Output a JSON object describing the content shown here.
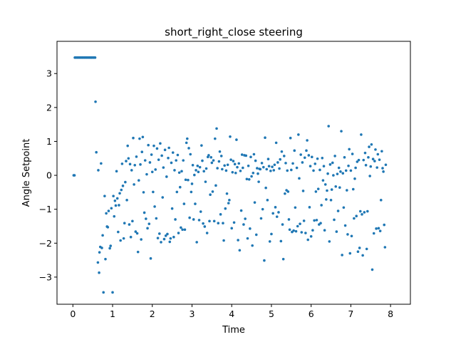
{
  "chart_data": {
    "type": "scatter",
    "title": "short_right_close steering",
    "xlabel": "Time",
    "ylabel": "Angle Setpoint",
    "xlim": [
      -0.4,
      8.5
    ],
    "ylim": [
      -3.8,
      3.95
    ],
    "xticks": [
      0,
      1,
      2,
      3,
      4,
      5,
      6,
      7,
      8
    ],
    "yticks": [
      -3,
      -2,
      -1,
      0,
      1,
      2,
      3
    ],
    "grid": false,
    "legend": "none",
    "color": "#1f77b4",
    "points": [
      [
        0.02,
        0.0
      ],
      [
        0.04,
        0.0
      ],
      [
        0.05,
        3.47
      ],
      [
        0.08,
        3.47
      ],
      [
        0.11,
        3.47
      ],
      [
        0.14,
        3.47
      ],
      [
        0.17,
        3.47
      ],
      [
        0.2,
        3.47
      ],
      [
        0.23,
        3.47
      ],
      [
        0.26,
        3.47
      ],
      [
        0.29,
        3.47
      ],
      [
        0.32,
        3.47
      ],
      [
        0.35,
        3.47
      ],
      [
        0.38,
        3.47
      ],
      [
        0.41,
        3.47
      ],
      [
        0.44,
        3.47
      ],
      [
        0.47,
        3.47
      ],
      [
        0.5,
        3.47
      ],
      [
        0.53,
        3.47
      ],
      [
        0.56,
        3.47
      ],
      [
        0.57,
        2.17
      ],
      [
        0.59,
        0.68
      ],
      [
        0.63,
        -2.57
      ],
      [
        0.64,
        0.15
      ],
      [
        0.66,
        -2.87
      ],
      [
        0.67,
        -2.27
      ],
      [
        0.69,
        -2.11
      ],
      [
        0.71,
        0.35
      ],
      [
        0.73,
        -2.14
      ],
      [
        0.75,
        -1.77
      ],
      [
        0.77,
        -3.45
      ],
      [
        0.8,
        -0.61
      ],
      [
        0.82,
        -2.47
      ],
      [
        0.84,
        -1.12
      ],
      [
        0.86,
        -1.51
      ],
      [
        0.88,
        -1.53
      ],
      [
        0.9,
        -1.05
      ],
      [
        0.93,
        -2.15
      ],
      [
        0.95,
        -2.08
      ],
      [
        0.97,
        -0.97
      ],
      [
        1.0,
        -3.45
      ],
      [
        1.02,
        -0.61
      ],
      [
        1.04,
        -1.21
      ],
      [
        1.06,
        -0.75
      ],
      [
        1.08,
        -0.89
      ],
      [
        1.1,
        0.12
      ],
      [
        1.12,
        -0.68
      ],
      [
        1.14,
        -1.67
      ],
      [
        1.16,
        -0.88
      ],
      [
        1.18,
        -0.53
      ],
      [
        1.2,
        -1.92
      ],
      [
        1.22,
        -0.43
      ],
      [
        1.24,
        0.34
      ],
      [
        1.26,
        -0.31
      ],
      [
        1.28,
        -1.86
      ],
      [
        1.3,
        -1.41
      ],
      [
        1.32,
        -0.2
      ],
      [
        1.34,
        0.42
      ],
      [
        1.36,
        -0.73
      ],
      [
        1.38,
        0.87
      ],
      [
        1.4,
        0.5
      ],
      [
        1.42,
        -1.45
      ],
      [
        1.44,
        0.33
      ],
      [
        1.46,
        -1.82
      ],
      [
        1.48,
        0.15
      ],
      [
        1.5,
        -1.35
      ],
      [
        1.52,
        1.1
      ],
      [
        1.54,
        -0.27
      ],
      [
        1.56,
        0.3
      ],
      [
        1.58,
        -1.66
      ],
      [
        1.6,
        0.55
      ],
      [
        1.62,
        -1.71
      ],
      [
        1.64,
        -2.26
      ],
      [
        1.66,
        -0.15
      ],
      [
        1.68,
        1.08
      ],
      [
        1.7,
        0.32
      ],
      [
        1.72,
        -1.89
      ],
      [
        1.74,
        0.69
      ],
      [
        1.76,
        1.13
      ],
      [
        1.78,
        -0.5
      ],
      [
        1.8,
        -1.1
      ],
      [
        1.82,
        0.44
      ],
      [
        1.84,
        -1.28
      ],
      [
        1.86,
        0.03
      ],
      [
        1.88,
        -1.56
      ],
      [
        1.9,
        0.89
      ],
      [
        1.92,
        -1.43
      ],
      [
        1.94,
        0.38
      ],
      [
        1.96,
        -2.45
      ],
      [
        1.98,
        0.61
      ],
      [
        2.0,
        0.1
      ],
      [
        2.02,
        -0.49
      ],
      [
        2.04,
        0.87
      ],
      [
        2.06,
        -0.92
      ],
      [
        2.08,
        0.17
      ],
      [
        2.1,
        -1.27
      ],
      [
        2.12,
        0.79
      ],
      [
        2.14,
        -1.85
      ],
      [
        2.16,
        0.46
      ],
      [
        2.18,
        -1.72
      ],
      [
        2.2,
        0.94
      ],
      [
        2.22,
        -1.97
      ],
      [
        2.24,
        0.58
      ],
      [
        2.26,
        -0.65
      ],
      [
        2.28,
        0.23
      ],
      [
        2.3,
        -1.88
      ],
      [
        2.32,
        0.75
      ],
      [
        2.34,
        -1.78
      ],
      [
        2.36,
        -0.04
      ],
      [
        2.38,
        -1.73
      ],
      [
        2.4,
        0.51
      ],
      [
        2.42,
        0.81
      ],
      [
        2.44,
        -1.96
      ],
      [
        2.46,
        -1.86
      ],
      [
        2.48,
        0.37
      ],
      [
        2.5,
        -0.98
      ],
      [
        2.52,
        0.67
      ],
      [
        2.54,
        -1.82
      ],
      [
        2.56,
        0.15
      ],
      [
        2.58,
        -1.3
      ],
      [
        2.6,
        0.44
      ],
      [
        2.62,
        -0.49
      ],
      [
        2.64,
        0.6
      ],
      [
        2.66,
        -1.7
      ],
      [
        2.68,
        0.08
      ],
      [
        2.7,
        -0.35
      ],
      [
        2.72,
        -1.54
      ],
      [
        2.74,
        0.12
      ],
      [
        2.76,
        -1.6
      ],
      [
        2.78,
        0.44
      ],
      [
        2.8,
        -0.84
      ],
      [
        2.82,
        -1.6
      ],
      [
        2.84,
        -0.13
      ],
      [
        2.86,
        0.96
      ],
      [
        2.88,
        1.08
      ],
      [
        2.9,
        -0.14
      ],
      [
        2.92,
        0.8
      ],
      [
        2.94,
        -1.25
      ],
      [
        2.96,
        0.62
      ],
      [
        2.98,
        -0.49
      ],
      [
        3.0,
        -0.25
      ],
      [
        3.02,
        0.3
      ],
      [
        3.04,
        -1.3
      ],
      [
        3.06,
        0.01
      ],
      [
        3.08,
        -0.84
      ],
      [
        3.1,
        0.15
      ],
      [
        3.12,
        -1.97
      ],
      [
        3.14,
        0.28
      ],
      [
        3.16,
        0.1
      ],
      [
        3.18,
        -1.32
      ],
      [
        3.2,
        0.24
      ],
      [
        3.22,
        -1.07
      ],
      [
        3.24,
        0.88
      ],
      [
        3.26,
        0.43
      ],
      [
        3.28,
        -1.42
      ],
      [
        3.3,
        0.12
      ],
      [
        3.32,
        -1.51
      ],
      [
        3.34,
        -0.19
      ],
      [
        3.36,
        0.2
      ],
      [
        3.38,
        -1.7
      ],
      [
        3.4,
        0.54
      ],
      [
        3.42,
        0.59
      ],
      [
        3.44,
        -1.35
      ],
      [
        3.46,
        -0.57
      ],
      [
        3.48,
        0.53
      ],
      [
        3.5,
        0.37
      ],
      [
        3.52,
        -0.48
      ],
      [
        3.54,
        0.44
      ],
      [
        3.56,
        -1.35
      ],
      [
        3.58,
        1.08
      ],
      [
        3.6,
        -0.3
      ],
      [
        3.62,
        1.38
      ],
      [
        3.64,
        0.21
      ],
      [
        3.66,
        -1.41
      ],
      [
        3.68,
        0.41
      ],
      [
        3.7,
        0.7
      ],
      [
        3.72,
        -1.15
      ],
      [
        3.74,
        0.57
      ],
      [
        3.76,
        0.18
      ],
      [
        3.78,
        -1.41
      ],
      [
        3.8,
        -1.92
      ],
      [
        3.82,
        0.29
      ],
      [
        3.84,
        -0.98
      ],
      [
        3.86,
        0.14
      ],
      [
        3.88,
        -0.54
      ],
      [
        3.9,
        0.31
      ],
      [
        3.92,
        -0.82
      ],
      [
        3.94,
        -0.73
      ],
      [
        3.96,
        1.14
      ],
      [
        3.98,
        0.46
      ],
      [
        4.0,
        -1.56
      ],
      [
        4.02,
        0.09
      ],
      [
        4.04,
        0.42
      ],
      [
        4.06,
        -1.39
      ],
      [
        4.08,
        0.33
      ],
      [
        4.1,
        0.07
      ],
      [
        4.12,
        1.05
      ],
      [
        4.14,
        0.24
      ],
      [
        4.16,
        -1.91
      ],
      [
        4.18,
        0.35
      ],
      [
        4.2,
        -2.21
      ],
      [
        4.22,
        0.13
      ],
      [
        4.24,
        -1.04
      ],
      [
        4.26,
        0.61
      ],
      [
        4.28,
        0.22
      ],
      [
        4.3,
        -1.45
      ],
      [
        4.32,
        0.59
      ],
      [
        4.34,
        -1.28
      ],
      [
        4.36,
        0.58
      ],
      [
        4.38,
        -0.11
      ],
      [
        4.4,
        -1.86
      ],
      [
        4.42,
        0.28
      ],
      [
        4.44,
        -0.12
      ],
      [
        4.46,
        -1.57
      ],
      [
        4.48,
        0.54
      ],
      [
        4.5,
        -0.03
      ],
      [
        4.52,
        -2.07
      ],
      [
        4.54,
        0.07
      ],
      [
        4.56,
        0.62
      ],
      [
        4.58,
        -0.8
      ],
      [
        4.6,
        0.43
      ],
      [
        4.62,
        -1.75
      ],
      [
        4.64,
        0.21
      ],
      [
        4.66,
        0.05
      ],
      [
        4.68,
        -0.19
      ],
      [
        4.7,
        0.19
      ],
      [
        4.72,
        0.18
      ],
      [
        4.74,
        -1.27
      ],
      [
        4.76,
        0.36
      ],
      [
        4.78,
        -1.0
      ],
      [
        4.8,
        0.24
      ],
      [
        4.82,
        -2.51
      ],
      [
        4.84,
        1.11
      ],
      [
        4.86,
        -0.37
      ],
      [
        4.88,
        0.18
      ],
      [
        4.9,
        -0.73
      ],
      [
        4.92,
        0.48
      ],
      [
        4.94,
        0.27
      ],
      [
        4.96,
        -1.95
      ],
      [
        4.98,
        0.13
      ],
      [
        5.0,
        -1.73
      ],
      [
        5.02,
        0.25
      ],
      [
        5.04,
        -1.12
      ],
      [
        5.06,
        0.15
      ],
      [
        5.08,
        0.31
      ],
      [
        5.1,
        -0.94
      ],
      [
        5.12,
        0.96
      ],
      [
        5.14,
        -1.22
      ],
      [
        5.16,
        0.38
      ],
      [
        5.18,
        -1.09
      ],
      [
        5.2,
        0.2
      ],
      [
        5.22,
        0.47
      ],
      [
        5.24,
        -1.94
      ],
      [
        5.26,
        0.7
      ],
      [
        5.28,
        -1.45
      ],
      [
        5.3,
        -2.47
      ],
      [
        5.32,
        0.57
      ],
      [
        5.34,
        -0.54
      ],
      [
        5.36,
        0.36
      ],
      [
        5.38,
        -0.44
      ],
      [
        5.4,
        0.14
      ],
      [
        5.42,
        -0.48
      ],
      [
        5.44,
        -1.3
      ],
      [
        5.46,
        -1.6
      ],
      [
        5.48,
        1.1
      ],
      [
        5.5,
        0.16
      ],
      [
        5.52,
        -1.67
      ],
      [
        5.54,
        0.35
      ],
      [
        5.56,
        -1.63
      ],
      [
        5.58,
        0.73
      ],
      [
        5.6,
        -0.95
      ],
      [
        5.62,
        -1.65
      ],
      [
        5.64,
        0.22
      ],
      [
        5.66,
        -1.5
      ],
      [
        5.68,
        1.2
      ],
      [
        5.7,
        -0.09
      ],
      [
        5.72,
        -1.43
      ],
      [
        5.74,
        0.61
      ],
      [
        5.76,
        -1.68
      ],
      [
        5.78,
        0.38
      ],
      [
        5.8,
        -0.46
      ],
      [
        5.82,
        -1.34
      ],
      [
        5.84,
        0.52
      ],
      [
        5.86,
        -1.7
      ],
      [
        5.88,
        0.73
      ],
      [
        5.9,
        1.03
      ],
      [
        5.92,
        -1.9
      ],
      [
        5.94,
        0.59
      ],
      [
        5.96,
        -0.94
      ],
      [
        5.98,
        0.27
      ],
      [
        6.0,
        -1.8
      ],
      [
        6.02,
        0.54
      ],
      [
        6.04,
        -1.62
      ],
      [
        6.06,
        0.14
      ],
      [
        6.08,
        -1.33
      ],
      [
        6.1,
        0.34
      ],
      [
        6.12,
        -0.48
      ],
      [
        6.14,
        -1.32
      ],
      [
        6.16,
        0.49
      ],
      [
        6.18,
        -0.4
      ],
      [
        6.2,
        -1.45
      ],
      [
        6.22,
        0.16
      ],
      [
        6.24,
        -1.41
      ],
      [
        6.26,
        -0.88
      ],
      [
        6.28,
        0.51
      ],
      [
        6.3,
        -0.15
      ],
      [
        6.32,
        0.27
      ],
      [
        6.34,
        -1.62
      ],
      [
        6.36,
        -0.27
      ],
      [
        6.38,
        -0.71
      ],
      [
        6.4,
        -0.45
      ],
      [
        6.42,
        0.05
      ],
      [
        6.44,
        1.45
      ],
      [
        6.46,
        -1.95
      ],
      [
        6.48,
        0.32
      ],
      [
        6.5,
        -0.73
      ],
      [
        6.52,
        -0.42
      ],
      [
        6.54,
        0.37
      ],
      [
        6.56,
        0.0
      ],
      [
        6.58,
        -1.31
      ],
      [
        6.6,
        0.57
      ],
      [
        6.62,
        -0.33
      ],
      [
        6.64,
        -1.66
      ],
      [
        6.66,
        0.04
      ],
      [
        6.68,
        -1.05
      ],
      [
        6.7,
        0.22
      ],
      [
        6.72,
        -0.36
      ],
      [
        6.74,
        0.11
      ],
      [
        6.76,
        1.3
      ],
      [
        6.78,
        -2.35
      ],
      [
        6.8,
        0.06
      ],
      [
        6.82,
        -0.95
      ],
      [
        6.84,
        0.53
      ],
      [
        6.86,
        -1.48
      ],
      [
        6.88,
        0.14
      ],
      [
        6.9,
        -0.44
      ],
      [
        6.92,
        -1.74
      ],
      [
        6.94,
        0.28
      ],
      [
        6.96,
        0.77
      ],
      [
        6.98,
        -2.3
      ],
      [
        7.0,
        0.14
      ],
      [
        7.02,
        -1.79
      ],
      [
        7.04,
        0.63
      ],
      [
        7.06,
        -0.41
      ],
      [
        7.08,
        -1.27
      ],
      [
        7.1,
        -0.1
      ],
      [
        7.12,
        0.22
      ],
      [
        7.14,
        -1.2
      ],
      [
        7.16,
        0.4
      ],
      [
        7.18,
        -2.25
      ],
      [
        7.2,
        0.45
      ],
      [
        7.22,
        -2.14
      ],
      [
        7.24,
        -1.06
      ],
      [
        7.26,
        1.2
      ],
      [
        7.28,
        -1.15
      ],
      [
        7.3,
        -2.36
      ],
      [
        7.32,
        0.45
      ],
      [
        7.34,
        -1.09
      ],
      [
        7.36,
        0.66
      ],
      [
        7.38,
        0.3
      ],
      [
        7.4,
        -2.17
      ],
      [
        7.42,
        -1.06
      ],
      [
        7.44,
        0.53
      ],
      [
        7.46,
        0.84
      ],
      [
        7.48,
        -0.02
      ],
      [
        7.5,
        0.26
      ],
      [
        7.52,
        0.91
      ],
      [
        7.54,
        -2.78
      ],
      [
        7.56,
        0.48
      ],
      [
        7.58,
        -1.71
      ],
      [
        7.6,
        0.42
      ],
      [
        7.62,
        0.76
      ],
      [
        7.64,
        -1.57
      ],
      [
        7.66,
        0.23
      ],
      [
        7.68,
        0.62
      ],
      [
        7.7,
        -1.56
      ],
      [
        7.72,
        0.46
      ],
      [
        7.74,
        -1.64
      ],
      [
        7.76,
        -0.73
      ],
      [
        7.78,
        0.71
      ],
      [
        7.8,
        0.21
      ],
      [
        7.82,
        0.11
      ],
      [
        7.84,
        -1.46
      ],
      [
        7.86,
        -2.12
      ],
      [
        7.88,
        0.31
      ]
    ]
  }
}
